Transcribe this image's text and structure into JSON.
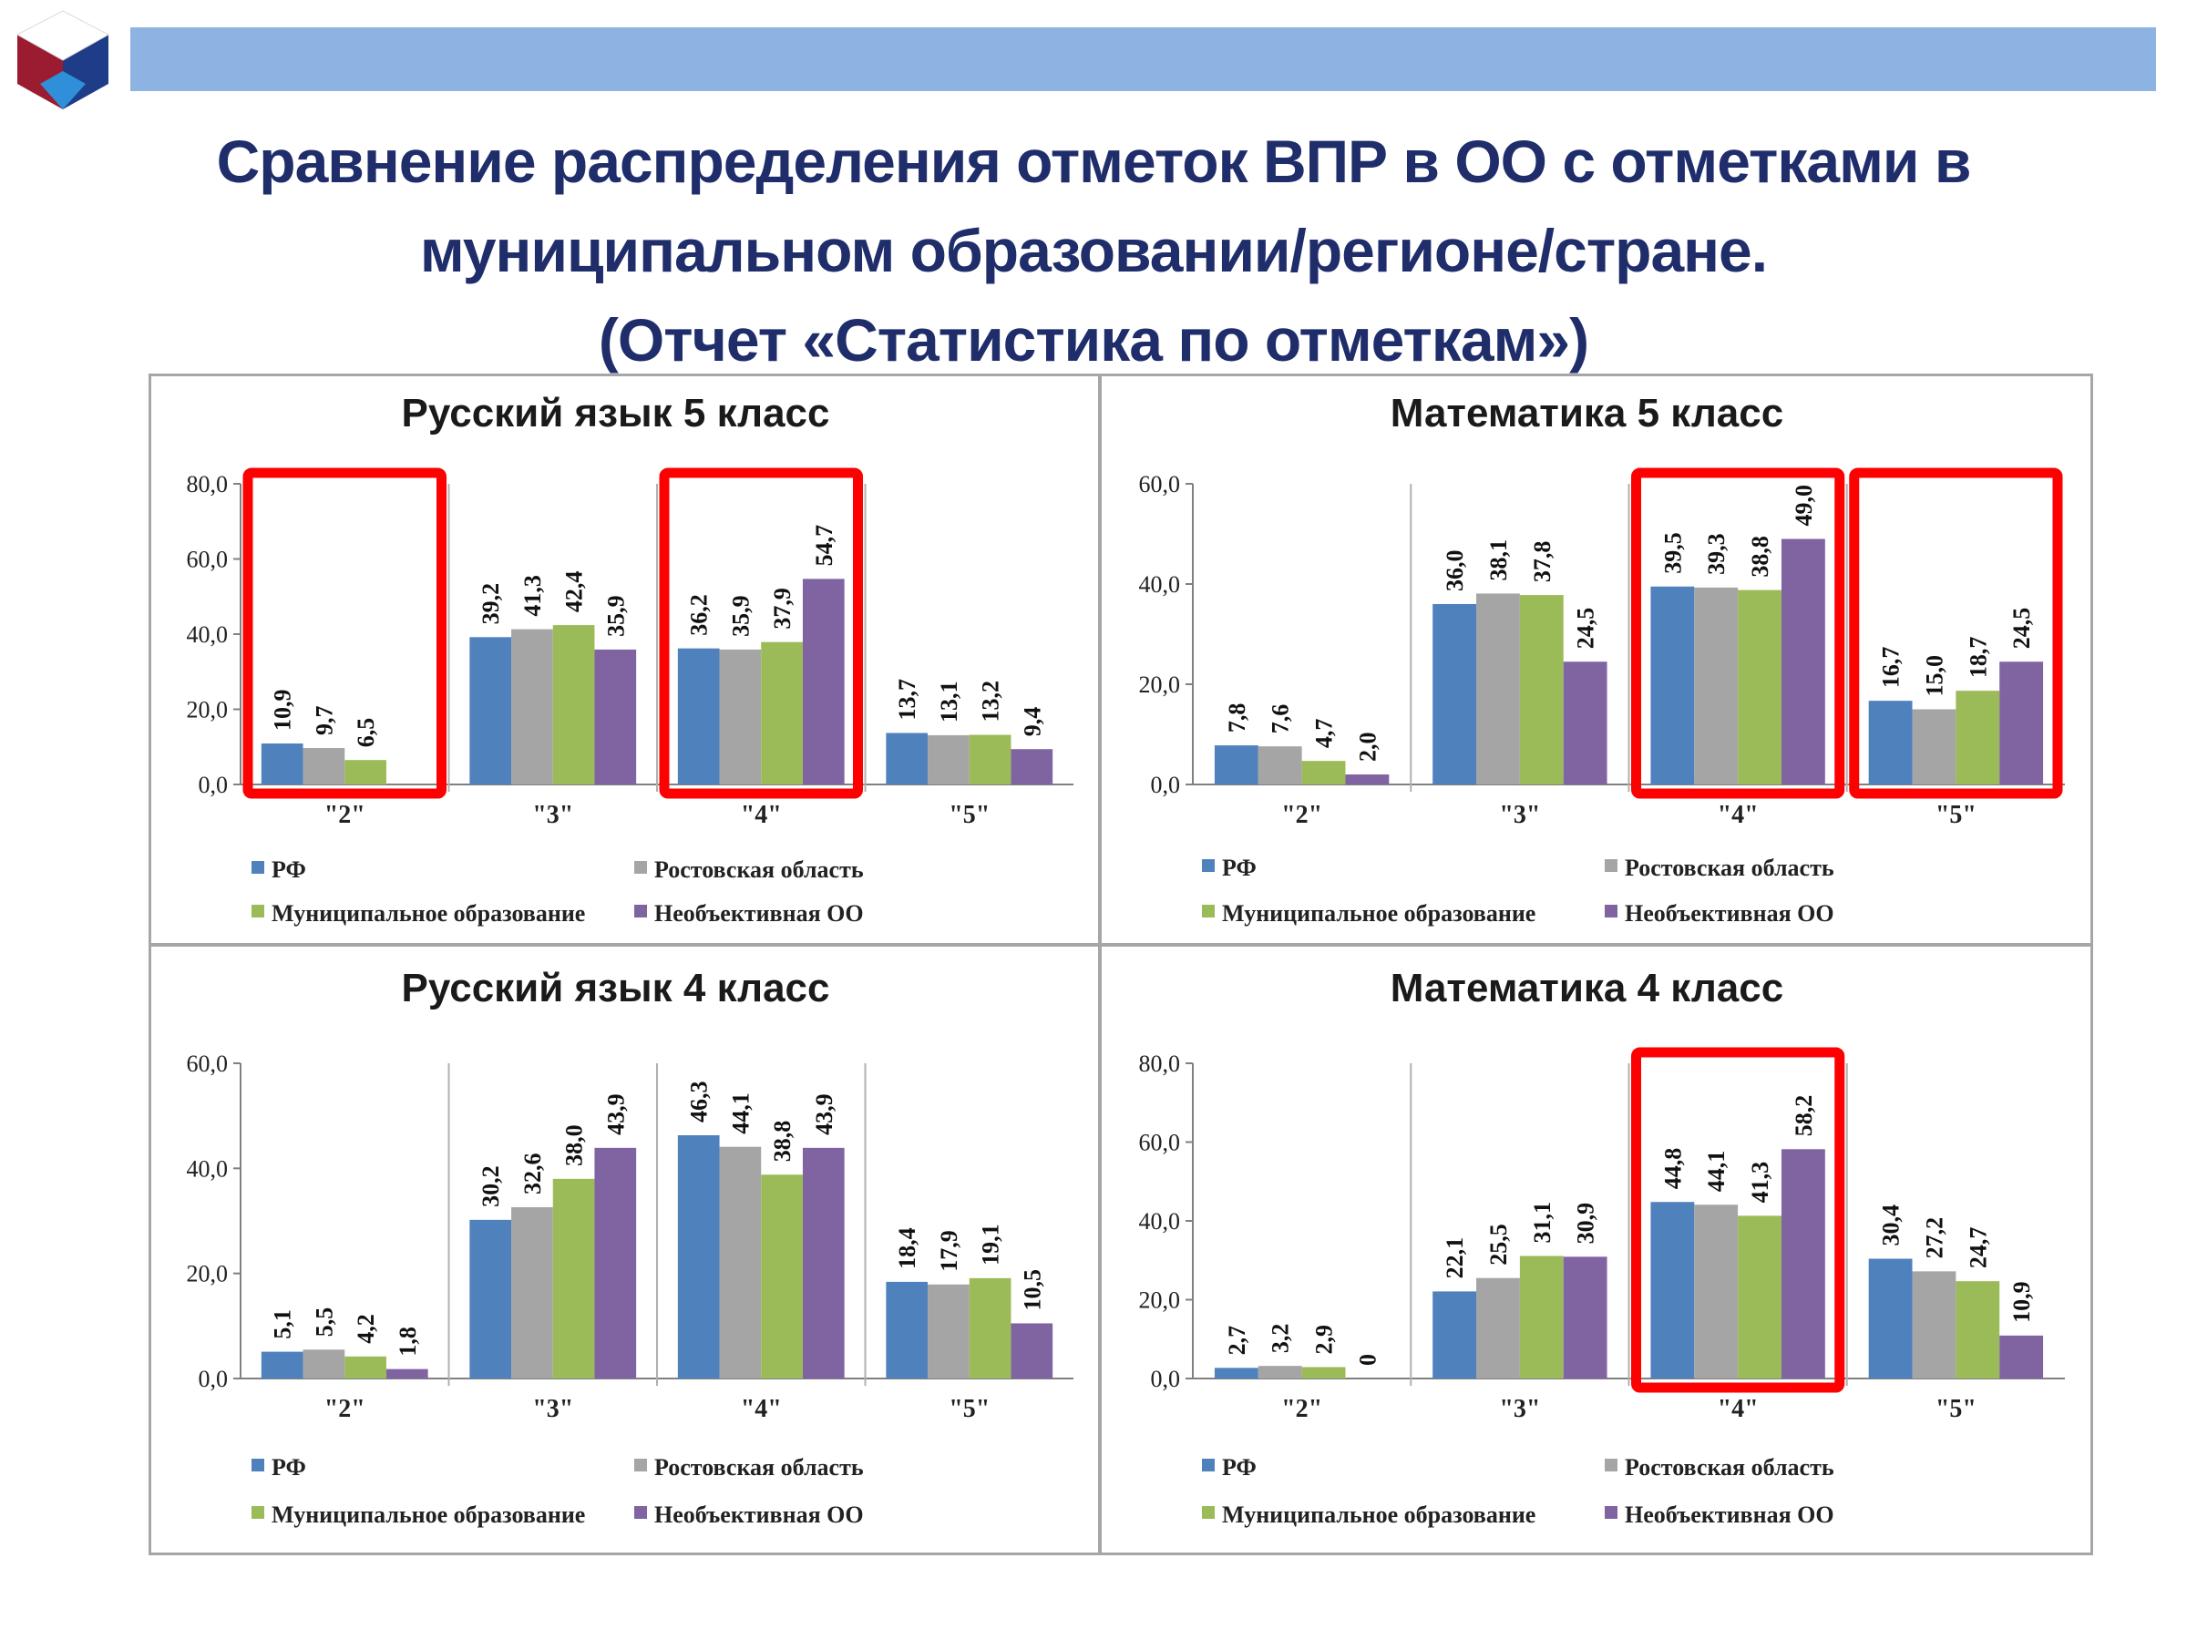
{
  "title": {
    "line1": "Сравнение распределения отметок ВПР в ОО с отметками в",
    "line2": "муниципальном образовании/регионе/стране.",
    "line3": "(Отчет «Статистика по отметкам»)"
  },
  "colors": {
    "top_bar": "#8db3e2",
    "title_text": "#1f2d6b",
    "highlight": "#ff0000",
    "logo": [
      "#9b1b30",
      "#1f3c88",
      "#2f8fd8"
    ]
  },
  "chart_data": [
    {
      "id": "rus5",
      "type": "bar",
      "title": "Русский язык 5 класс",
      "categories": [
        "\"2\"",
        "\"3\"",
        "\"4\"",
        "\"5\""
      ],
      "series": [
        {
          "name": "РФ",
          "color": "#4f81bd",
          "values": [
            10.9,
            39.2,
            36.2,
            13.7
          ],
          "labels": [
            "10,9",
            "39,2",
            "36,2",
            "13,7"
          ]
        },
        {
          "name": "Ростовская область",
          "color": "#a5a5a5",
          "values": [
            9.7,
            41.3,
            35.9,
            13.1
          ],
          "labels": [
            "9,7",
            "41,3",
            "35,9",
            "13,1"
          ]
        },
        {
          "name": "Муниципальное образование",
          "color": "#9bbb59",
          "values": [
            6.5,
            42.4,
            37.9,
            13.2
          ],
          "labels": [
            "6,5",
            "42,4",
            "37,9",
            "13,2"
          ]
        },
        {
          "name": "Необъективная ОО",
          "color": "#8064a2",
          "values": [
            null,
            35.9,
            54.7,
            9.4
          ],
          "labels": [
            "",
            "35,9",
            "54,7",
            "9,4"
          ]
        }
      ],
      "ylim": [
        0,
        80
      ],
      "yticks": [
        "0,0",
        "20,0",
        "40,0",
        "60,0",
        "80,0"
      ],
      "highlighted_categories": [
        0,
        2
      ]
    },
    {
      "id": "math5",
      "type": "bar",
      "title": "Математика 5 класс",
      "categories": [
        "\"2\"",
        "\"3\"",
        "\"4\"",
        "\"5\""
      ],
      "series": [
        {
          "name": "РФ",
          "color": "#4f81bd",
          "values": [
            7.8,
            36.0,
            39.5,
            16.7
          ],
          "labels": [
            "7,8",
            "36,0",
            "39,5",
            "16,7"
          ]
        },
        {
          "name": "Ростовская область",
          "color": "#a5a5a5",
          "values": [
            7.6,
            38.1,
            39.3,
            15.0
          ],
          "labels": [
            "7,6",
            "38,1",
            "39,3",
            "15,0"
          ]
        },
        {
          "name": "Муниципальное образование",
          "color": "#9bbb59",
          "values": [
            4.7,
            37.8,
            38.8,
            18.7
          ],
          "labels": [
            "4,7",
            "37,8",
            "38,8",
            "18,7"
          ]
        },
        {
          "name": "Необъективная ОО",
          "color": "#8064a2",
          "values": [
            2.0,
            24.5,
            49.0,
            24.5
          ],
          "labels": [
            "2,0",
            "24,5",
            "49,0",
            "24,5"
          ]
        }
      ],
      "ylim": [
        0,
        60
      ],
      "yticks": [
        "0,0",
        "20,0",
        "40,0",
        "60,0"
      ],
      "highlighted_categories": [
        2,
        3
      ]
    },
    {
      "id": "rus4",
      "type": "bar",
      "title": "Русский язык 4 класс",
      "categories": [
        "\"2\"",
        "\"3\"",
        "\"4\"",
        "\"5\""
      ],
      "series": [
        {
          "name": "РФ",
          "color": "#4f81bd",
          "values": [
            5.1,
            30.2,
            46.3,
            18.4
          ],
          "labels": [
            "5,1",
            "30,2",
            "46,3",
            "18,4"
          ]
        },
        {
          "name": "Ростовская область",
          "color": "#a5a5a5",
          "values": [
            5.5,
            32.6,
            44.1,
            17.9
          ],
          "labels": [
            "5,5",
            "32,6",
            "44,1",
            "17,9"
          ]
        },
        {
          "name": "Муниципальное образование",
          "color": "#9bbb59",
          "values": [
            4.2,
            38.0,
            38.8,
            19.1
          ],
          "labels": [
            "4,2",
            "38,0",
            "38,8",
            "19,1"
          ]
        },
        {
          "name": "Необъективная ОО",
          "color": "#8064a2",
          "values": [
            1.8,
            43.9,
            43.9,
            10.5
          ],
          "labels": [
            "1,8",
            "43,9",
            "43,9",
            "10,5"
          ]
        }
      ],
      "ylim": [
        0,
        60
      ],
      "yticks": [
        "0,0",
        "20,0",
        "40,0",
        "60,0"
      ],
      "highlighted_categories": []
    },
    {
      "id": "math4",
      "type": "bar",
      "title": "Математика 4 класс",
      "categories": [
        "\"2\"",
        "\"3\"",
        "\"4\"",
        "\"5\""
      ],
      "series": [
        {
          "name": "РФ",
          "color": "#4f81bd",
          "values": [
            2.7,
            22.1,
            44.8,
            30.4
          ],
          "labels": [
            "2,7",
            "22,1",
            "44,8",
            "30,4"
          ]
        },
        {
          "name": "Ростовская область",
          "color": "#a5a5a5",
          "values": [
            3.2,
            25.5,
            44.1,
            27.2
          ],
          "labels": [
            "3,2",
            "25,5",
            "44,1",
            "27,2"
          ]
        },
        {
          "name": "Муниципальное образование",
          "color": "#9bbb59",
          "values": [
            2.9,
            31.1,
            41.3,
            24.7
          ],
          "labels": [
            "2,9",
            "31,1",
            "41,3",
            "24,7"
          ]
        },
        {
          "name": "Необъективная ОО",
          "color": "#8064a2",
          "values": [
            0,
            30.9,
            58.2,
            10.9
          ],
          "labels": [
            "0",
            "30,9",
            "58,2",
            "10,9"
          ]
        }
      ],
      "ylim": [
        0,
        80
      ],
      "yticks": [
        "0,0",
        "20,0",
        "40,0",
        "60,0",
        "80,0"
      ],
      "highlighted_categories": [
        2
      ]
    }
  ]
}
